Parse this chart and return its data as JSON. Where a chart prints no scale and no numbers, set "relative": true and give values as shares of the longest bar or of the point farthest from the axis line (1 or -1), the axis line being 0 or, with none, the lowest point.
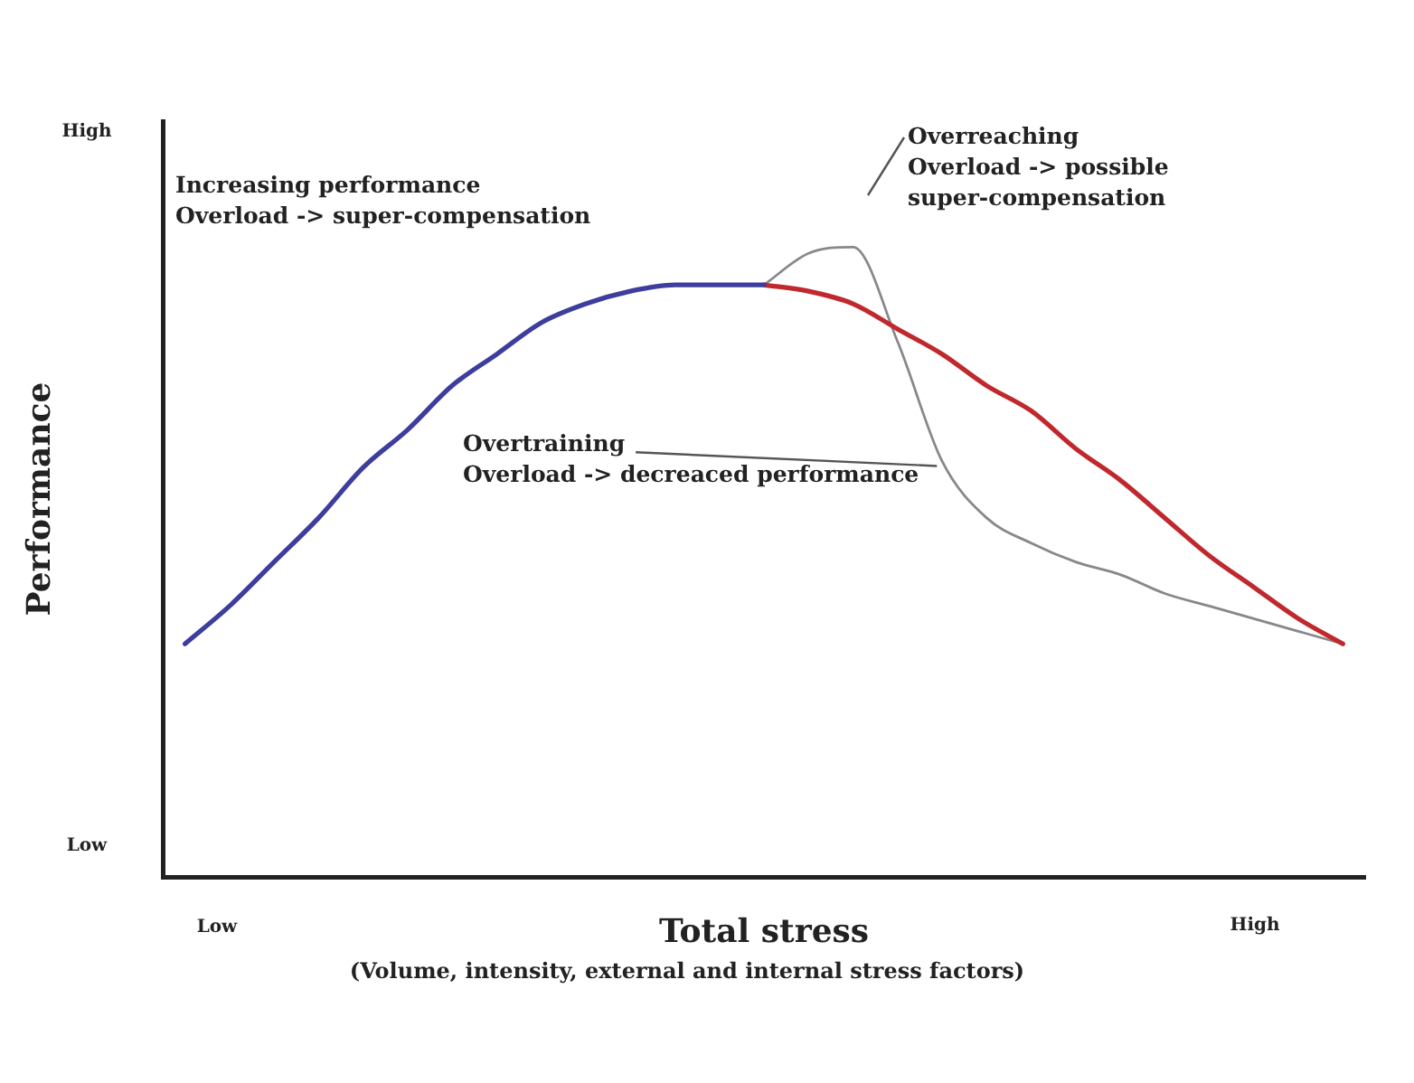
{
  "chart_data": {
    "type": "line",
    "relative": true,
    "xlabel": "Total stress",
    "ylabel": "Performance",
    "categories": [
      null,
      null,
      null,
      null,
      null,
      null,
      null,
      null,
      null,
      null,
      null,
      null,
      null,
      null,
      null,
      null,
      null,
      null,
      null,
      null,
      null,
      null,
      null,
      null,
      null,
      null,
      null
    ],
    "grid": false,
    "legend": false,
    "marker": "none",
    "line_style": "solid",
    "series": [
      {
        "color": "#3d3d9e",
        "values": [
          0.37,
          0.43,
          0.5,
          0.57,
          0.65,
          0.71,
          0.78,
          0.83,
          0.88,
          0.91,
          0.93,
          0.94,
          0.94,
          0.94,
          null,
          null,
          null,
          null,
          null,
          null,
          null,
          null,
          null,
          null,
          null,
          null,
          null
        ]
      },
      {
        "color": "#c0282d",
        "values": [
          null,
          null,
          null,
          null,
          null,
          null,
          null,
          null,
          null,
          null,
          null,
          null,
          null,
          0.94,
          0.93,
          0.91,
          0.87,
          0.83,
          0.78,
          0.74,
          0.68,
          0.63,
          0.57,
          0.51,
          0.46,
          0.41,
          0.37
        ]
      },
      {
        "color": "#888888",
        "values": [
          null,
          null,
          null,
          null,
          null,
          null,
          null,
          null,
          null,
          null,
          null,
          null,
          null,
          0.94,
          0.99,
          1,
          0.85,
          0.66,
          0.57,
          0.53,
          0.5,
          0.48,
          0.45,
          0.43,
          0.41,
          0.39,
          0.37
        ]
      }
    ],
    "annotations": [
      "High",
      "Low",
      "Low",
      "High",
      "Increasing performance\nOverload -> super-compensation",
      "Overreaching\nOverload -> possible\nsuper-compensation",
      "Overtraining\nOverload -> decreaced performance",
      "(Volume, intensity, external and internal stress factors)"
    ]
  }
}
